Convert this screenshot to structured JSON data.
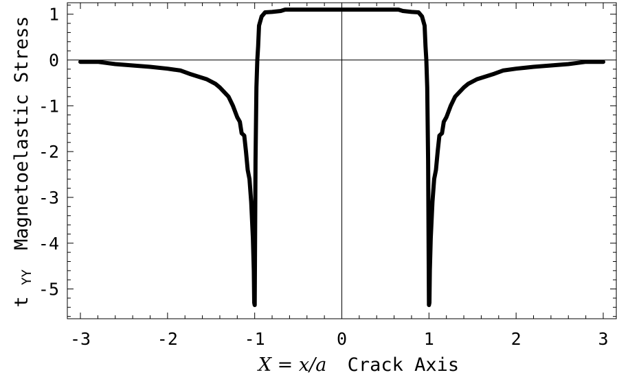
{
  "chart_data": {
    "type": "line",
    "title": "",
    "xlabel": {
      "math": "X = x/a",
      "text": "Crack Axis"
    },
    "ylabel": {
      "symbol": "t",
      "subscript": "YY",
      "text": "Magnetoelastic Stress"
    },
    "xlim": [
      -3.15,
      3.15
    ],
    "ylim": [
      -5.65,
      1.25
    ],
    "grid": false,
    "legend": "none",
    "x_ticks": [
      -3,
      -2,
      -1,
      0,
      1,
      2,
      3
    ],
    "x_tick_labels": [
      "-3",
      "-2",
      "-1",
      "0",
      "1",
      "2",
      "3"
    ],
    "y_ticks": [
      -5,
      -4,
      -3,
      -2,
      -1,
      0,
      1
    ],
    "y_tick_labels": [
      "-5",
      "-4",
      "-3",
      "-2",
      "-1",
      "0",
      "1"
    ],
    "line_color": "#000000",
    "series": [
      {
        "x": [
          -3.0,
          -2.8,
          -2.6,
          -2.4,
          -2.2,
          -2.0,
          -1.85,
          -1.75,
          -1.65,
          -1.55,
          -1.45,
          -1.4,
          -1.35,
          -1.3,
          -1.25,
          -1.2,
          -1.17,
          -1.15,
          -1.12,
          -1.1,
          -1.08,
          -1.06,
          -1.04,
          -1.02,
          -1.01,
          -1.005,
          -1.0,
          -0.99,
          -0.98,
          -0.97,
          -0.96,
          -0.95,
          -0.92,
          -0.88,
          -0.8,
          -0.7,
          -0.65,
          -0.5,
          -0.3,
          0.0,
          0.3,
          0.5,
          0.65,
          0.7,
          0.8,
          0.88,
          0.92,
          0.95,
          0.96,
          0.97,
          0.98,
          0.99,
          1.0,
          1.005,
          1.01,
          1.02,
          1.04,
          1.06,
          1.08,
          1.1,
          1.12,
          1.15,
          1.17,
          1.2,
          1.25,
          1.3,
          1.35,
          1.4,
          1.45,
          1.55,
          1.65,
          1.75,
          1.85,
          2.0,
          2.2,
          2.4,
          2.6,
          2.8,
          3.0
        ],
        "y": [
          -0.04,
          -0.04,
          -0.09,
          -0.12,
          -0.15,
          -0.19,
          -0.23,
          -0.3,
          -0.36,
          -0.42,
          -0.52,
          -0.6,
          -0.7,
          -0.8,
          -1.0,
          -1.25,
          -1.35,
          -1.6,
          -1.65,
          -2.0,
          -2.4,
          -2.6,
          -3.1,
          -3.9,
          -4.6,
          -5.3,
          -5.35,
          -2.2,
          -0.6,
          0.0,
          0.3,
          0.75,
          0.95,
          1.04,
          1.05,
          1.07,
          1.1,
          1.1,
          1.1,
          1.1,
          1.1,
          1.1,
          1.1,
          1.07,
          1.05,
          1.04,
          0.95,
          0.75,
          0.3,
          0.0,
          -0.6,
          -2.2,
          -5.35,
          -5.3,
          -4.6,
          -3.9,
          -3.1,
          -2.6,
          -2.4,
          -2.0,
          -1.65,
          -1.6,
          -1.35,
          -1.25,
          -1.0,
          -0.8,
          -0.7,
          -0.6,
          -0.52,
          -0.42,
          -0.36,
          -0.3,
          -0.23,
          -0.19,
          -0.15,
          -0.12,
          -0.09,
          -0.04,
          -0.04
        ]
      }
    ]
  }
}
